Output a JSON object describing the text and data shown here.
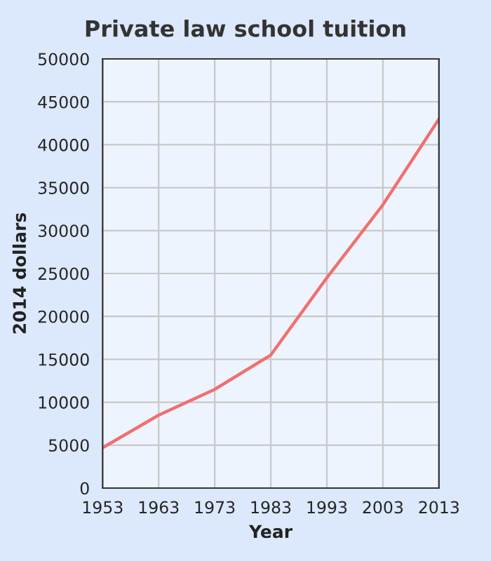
{
  "chart_data": {
    "type": "line",
    "title": "Private law school tuition",
    "xlabel": "Year",
    "ylabel": "2014 dollars",
    "x": [
      1953,
      1963,
      1973,
      1983,
      1993,
      2003,
      2013
    ],
    "series": [
      {
        "color": "#f07070",
        "values": [
          4700,
          8500,
          11500,
          15500,
          24500,
          33000,
          43000
        ]
      }
    ],
    "xlim": [
      1953,
      2013
    ],
    "xticks": [
      1953,
      1963,
      1973,
      1983,
      1993,
      2003,
      2013
    ],
    "ylim": [
      0,
      50000
    ],
    "yticks": [
      0,
      5000,
      10000,
      15000,
      20000,
      25000,
      30000,
      35000,
      40000,
      45000,
      50000
    ],
    "grid": true,
    "marker": "none",
    "line_style": "solid"
  }
}
